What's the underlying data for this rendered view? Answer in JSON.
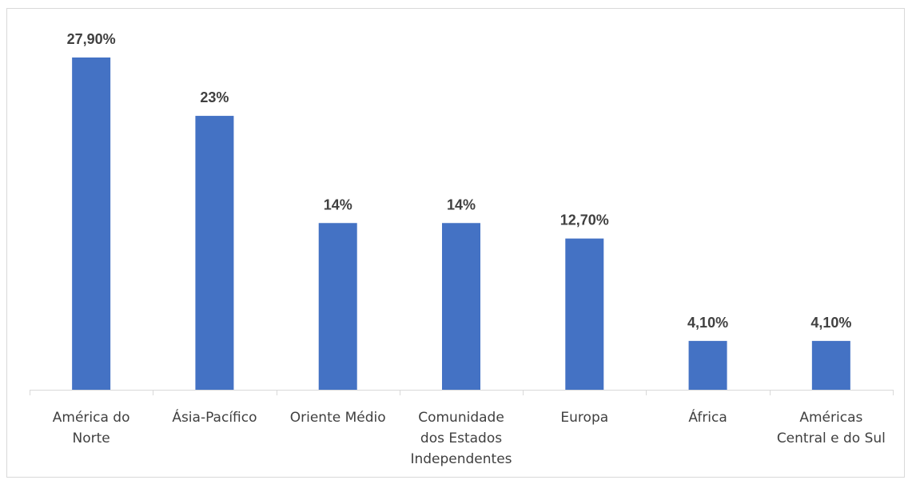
{
  "chart_data": {
    "type": "bar",
    "categories": [
      "América do Norte",
      "Ásia-Pacífico",
      "Oriente Médio",
      "Comunidade dos Estados Independentes",
      "Europa",
      "África",
      "Américas Central e do Sul"
    ],
    "category_lines": [
      [
        "América do",
        "Norte"
      ],
      [
        "Ásia-Pacífico"
      ],
      [
        "Oriente Médio"
      ],
      [
        "Comunidade",
        "dos Estados",
        "Independentes"
      ],
      [
        "Europa"
      ],
      [
        "África"
      ],
      [
        "Américas",
        "Central e do Sul"
      ]
    ],
    "values": [
      27.9,
      23,
      14,
      14,
      12.7,
      4.1,
      4.1
    ],
    "data_labels": [
      "27,90%",
      "23%",
      "14%",
      "14%",
      "12,70%",
      "4,10%",
      "4,10%"
    ],
    "title": "",
    "xlabel": "",
    "ylabel": "",
    "ylim": [
      0,
      30
    ],
    "grid": false,
    "legend": "none",
    "colors": {
      "bar": "#4472c4",
      "axis": "#d9d9d9",
      "text": "#404040"
    }
  }
}
